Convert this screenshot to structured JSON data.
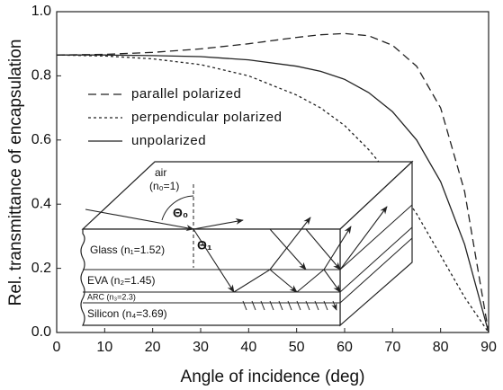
{
  "chart_data": {
    "type": "line",
    "x_label": "Angle of incidence (deg)",
    "y_label": "Rel. transmittance of encapsulation",
    "x": [
      0,
      10,
      20,
      30,
      40,
      50,
      55,
      60,
      65,
      70,
      75,
      80,
      85,
      90
    ],
    "series": [
      {
        "name": "parallel polarized",
        "color": "#222222",
        "dash": "9,5",
        "values": [
          0.865,
          0.867,
          0.873,
          0.884,
          0.9,
          0.92,
          0.928,
          0.932,
          0.925,
          0.895,
          0.83,
          0.7,
          0.44,
          0.0
        ]
      },
      {
        "name": "perpendicular polarized",
        "color": "#222222",
        "dash": "3,3",
        "values": [
          0.865,
          0.862,
          0.853,
          0.835,
          0.8,
          0.74,
          0.7,
          0.645,
          0.57,
          0.48,
          0.37,
          0.24,
          0.11,
          0.0
        ]
      },
      {
        "name": "unpolarized",
        "color": "#222222",
        "dash": "none",
        "values": [
          0.865,
          0.865,
          0.863,
          0.86,
          0.85,
          0.83,
          0.814,
          0.789,
          0.748,
          0.688,
          0.6,
          0.47,
          0.275,
          0.0
        ]
      }
    ],
    "xlim": [
      0,
      90
    ],
    "xticks": [
      0,
      10,
      20,
      30,
      40,
      50,
      60,
      70,
      80,
      90
    ],
    "ylim": [
      0,
      1
    ],
    "yticks": [
      {
        "value": 0,
        "label": "0.0"
      },
      0.2,
      0.4,
      0.6,
      0.8,
      {
        "value": 1,
        "label": "1.0"
      }
    ],
    "legend": "upper left",
    "annotations": [
      "air",
      "(n₀=1)",
      "Θ₀",
      "Θ₁",
      "Glass (n₁=1.52)",
      "EVA (n₂=1.45)",
      "ARC (n₃=2.3)",
      "Silicon (n₄=3.69)"
    ]
  }
}
